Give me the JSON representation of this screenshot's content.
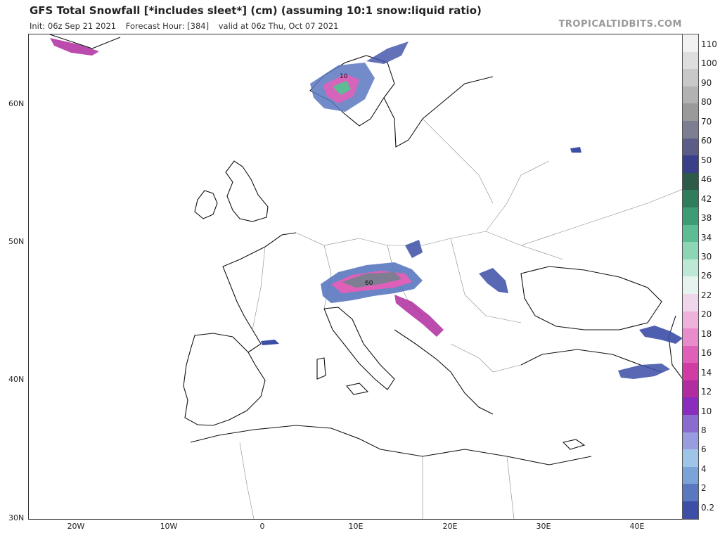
{
  "header": {
    "title": "GFS Total Snowfall [*includes sleet*] (cm) (assuming 10:1 snow:liquid ratio)",
    "init": "Init: 06z Sep 21 2021",
    "forecast_hour": "Forecast Hour: [384]",
    "valid": "valid at 06z Thu, Oct 07 2021",
    "brand": "TROPICALTIDBITS.COM"
  },
  "axes": {
    "lat_labels": [
      "60N",
      "50N",
      "40N",
      "30N"
    ],
    "lon_labels": [
      "20W",
      "10W",
      "0",
      "10E",
      "20E",
      "30E",
      "40E"
    ]
  },
  "map_labels": {
    "norway_max": "10",
    "alps_max": "60"
  },
  "colorbar": {
    "labels": [
      "110",
      "100",
      "90",
      "80",
      "70",
      "60",
      "50",
      "46",
      "42",
      "38",
      "34",
      "30",
      "26",
      "22",
      "20",
      "18",
      "16",
      "14",
      "12",
      "10",
      "8",
      "6",
      "4",
      "2",
      "0.2"
    ],
    "colors": [
      "#f2f2f2",
      "#dedede",
      "#c8c8c8",
      "#b2b2b2",
      "#9a9a9a",
      "#7e7e92",
      "#5c5c88",
      "#3a3f8a",
      "#2e5a4a",
      "#2f7d5c",
      "#3c9c74",
      "#5cbc94",
      "#8cd6b6",
      "#bde8d6",
      "#e6f3ee",
      "#f0d6ea",
      "#eeb2dc",
      "#e98ccb",
      "#df60b8",
      "#d03ca4",
      "#b02ca0",
      "#8a2cbe",
      "#8a6cd0",
      "#9a9ce0",
      "#9ec4e8",
      "#7aa4d8",
      "#5a78c0",
      "#3c4ea6"
    ]
  }
}
